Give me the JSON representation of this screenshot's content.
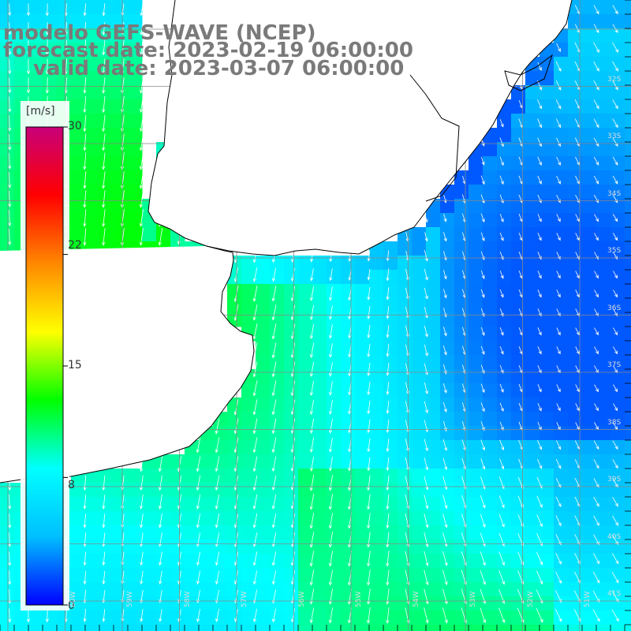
{
  "title": {
    "line1": "modelo GEFS-WAVE (NCEP)",
    "line2": "forecast date: 2023-02-19 06:00:00",
    "line3": "valid date: 2023-03-07 06:00:00"
  },
  "colorbar": {
    "unit": "[m/s]",
    "ticks": [
      {
        "label": "30",
        "value": 30
      },
      {
        "label": "22",
        "value": 22
      },
      {
        "label": "15",
        "value": 15
      },
      {
        "label": "8",
        "value": 8
      },
      {
        "label": "0",
        "value": 0
      }
    ],
    "min": 0,
    "max": 30,
    "stops": [
      "#0000ff",
      "#00bfff",
      "#00ffff",
      "#00ff00",
      "#ffff00",
      "#ff8800",
      "#ff0000",
      "#c8007a"
    ]
  },
  "axes": {
    "lat_labels": [
      "32S",
      "33S",
      "34S",
      "35S",
      "36S",
      "37S",
      "38S",
      "39S",
      "40S",
      "41S"
    ],
    "lon_labels": [
      "60W",
      "59W",
      "58W",
      "57W",
      "56W",
      "55W",
      "54W",
      "53W",
      "52W",
      "51W"
    ]
  },
  "colors": {
    "land": "#ffffff",
    "coast": "#000000",
    "grid": "#888888",
    "arrow": "#ffffff"
  }
}
